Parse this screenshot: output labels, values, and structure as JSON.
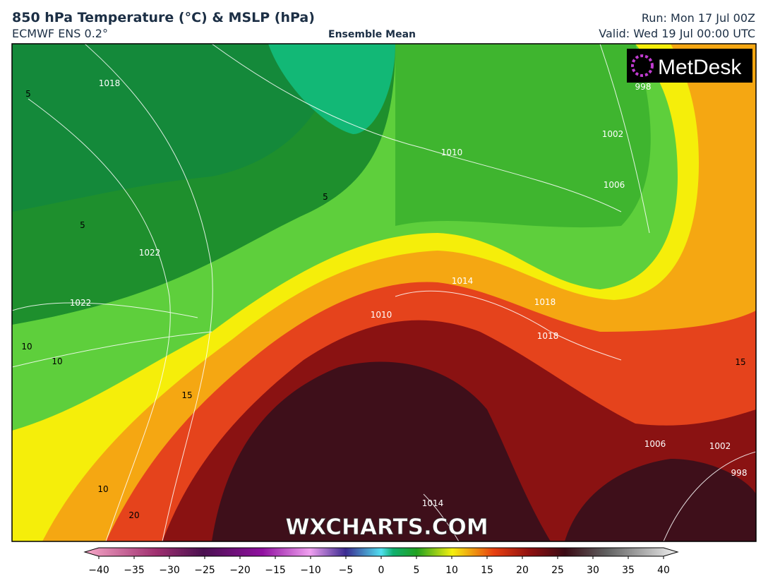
{
  "header": {
    "title": "850 hPa Temperature (°C) & MSLP (hPa)",
    "subtitle": "ECMWF ENS 0.2°",
    "center": "Ensemble Mean",
    "run": "Run: Mon 17 Jul 00Z",
    "valid": "Valid: Wed 19 Jul 00:00 UTC"
  },
  "logo": "MetDesk",
  "watermark": "WXCHARTS.COM",
  "map_labels": [
    "1018",
    "1022",
    "1022",
    "5",
    "5",
    "5",
    "10",
    "10",
    "15",
    "10",
    "20",
    "1010",
    "1014",
    "1018",
    "1018",
    "1002",
    "1006",
    "998",
    "15",
    "1014",
    "1006",
    "1002",
    "998",
    "1010"
  ],
  "colorbar": {
    "ticks": [
      {
        "value": -40,
        "label": "−40"
      },
      {
        "value": -35,
        "label": "−35"
      },
      {
        "value": -30,
        "label": "−30"
      },
      {
        "value": -25,
        "label": "−25"
      },
      {
        "value": -20,
        "label": "−20"
      },
      {
        "value": -15,
        "label": "−15"
      },
      {
        "value": -10,
        "label": "−10"
      },
      {
        "value": -5,
        "label": "−5"
      },
      0,
      5,
      10,
      15,
      20,
      25,
      30,
      35,
      40
    ]
  }
}
